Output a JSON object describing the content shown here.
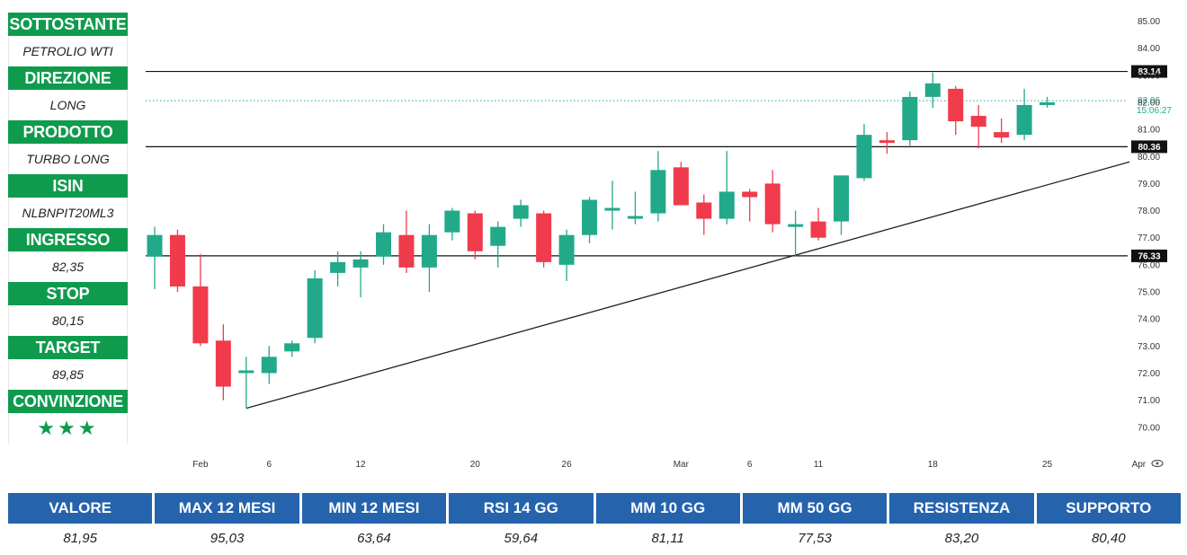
{
  "info_panel": [
    {
      "label": "SOTTOSTANTE",
      "value": "PETROLIO WTI"
    },
    {
      "label": "DIREZIONE",
      "value": "LONG"
    },
    {
      "label": "PRODOTTO",
      "value": "TURBO LONG"
    },
    {
      "label": "ISIN",
      "value": "NLBNPIT20ML3"
    },
    {
      "label": "INGRESSO",
      "value": "82,35"
    },
    {
      "label": "STOP",
      "value": "80,15"
    },
    {
      "label": "TARGET",
      "value": "89,85"
    },
    {
      "label": "CONVINZIONE",
      "value": "★★★"
    }
  ],
  "stats_table": {
    "headers": [
      "VALORE",
      "MAX 12 MESI",
      "MIN 12 MESI",
      "RSI 14 GG",
      "MM 10 GG",
      "MM 50 GG",
      "RESISTENZA",
      "SUPPORTO"
    ],
    "values": [
      "81,95",
      "95,03",
      "63,64",
      "59,64",
      "81,11",
      "77,53",
      "83,20",
      "80,40"
    ]
  },
  "colors": {
    "panel_green": "#0f9b4e",
    "table_blue": "#2563ad",
    "candle_up": "#22a98a",
    "candle_down": "#ef3b4c"
  },
  "chart_data": {
    "type": "candlestick",
    "ylim": [
      69.5,
      85.5
    ],
    "y_ticks": [
      "70.00",
      "71.00",
      "72.00",
      "73.00",
      "74.00",
      "75.00",
      "76.00",
      "77.00",
      "78.00",
      "79.00",
      "80.00",
      "81.00",
      "82.00",
      "83.00",
      "84.00",
      "85.00"
    ],
    "x_tick_labels": [
      {
        "label": "Feb",
        "index": 2
      },
      {
        "label": "6",
        "index": 5
      },
      {
        "label": "12",
        "index": 9
      },
      {
        "label": "20",
        "index": 14
      },
      {
        "label": "26",
        "index": 18
      },
      {
        "label": "Mar",
        "index": 23
      },
      {
        "label": "6",
        "index": 26
      },
      {
        "label": "11",
        "index": 29
      },
      {
        "label": "18",
        "index": 34
      },
      {
        "label": "25",
        "index": 39
      },
      {
        "label": "Apr",
        "index": 43
      }
    ],
    "candles": [
      {
        "o": 76.3,
        "h": 77.4,
        "l": 75.1,
        "c": 77.1
      },
      {
        "o": 77.1,
        "h": 77.3,
        "l": 75.0,
        "c": 75.2
      },
      {
        "o": 75.2,
        "h": 76.4,
        "l": 73.0,
        "c": 73.1
      },
      {
        "o": 73.2,
        "h": 73.8,
        "l": 71.0,
        "c": 71.5
      },
      {
        "o": 72.0,
        "h": 72.6,
        "l": 70.7,
        "c": 72.1
      },
      {
        "o": 72.0,
        "h": 73.0,
        "l": 71.6,
        "c": 72.6
      },
      {
        "o": 72.8,
        "h": 73.2,
        "l": 72.6,
        "c": 73.1
      },
      {
        "o": 73.3,
        "h": 75.8,
        "l": 73.1,
        "c": 75.5
      },
      {
        "o": 75.7,
        "h": 76.5,
        "l": 75.2,
        "c": 76.1
      },
      {
        "o": 75.9,
        "h": 76.5,
        "l": 74.8,
        "c": 76.2
      },
      {
        "o": 76.3,
        "h": 77.5,
        "l": 76.0,
        "c": 77.2
      },
      {
        "o": 77.1,
        "h": 78.0,
        "l": 75.7,
        "c": 75.9
      },
      {
        "o": 75.9,
        "h": 77.5,
        "l": 75.0,
        "c": 77.1
      },
      {
        "o": 77.2,
        "h": 78.1,
        "l": 76.9,
        "c": 78.0
      },
      {
        "o": 77.9,
        "h": 78.0,
        "l": 76.2,
        "c": 76.5
      },
      {
        "o": 76.7,
        "h": 77.6,
        "l": 75.9,
        "c": 77.4
      },
      {
        "o": 77.7,
        "h": 78.4,
        "l": 77.4,
        "c": 78.2
      },
      {
        "o": 77.9,
        "h": 78.0,
        "l": 75.9,
        "c": 76.1
      },
      {
        "o": 76.0,
        "h": 77.3,
        "l": 75.4,
        "c": 77.1
      },
      {
        "o": 77.1,
        "h": 78.5,
        "l": 76.8,
        "c": 78.4
      },
      {
        "o": 78.0,
        "h": 79.1,
        "l": 77.3,
        "c": 78.1
      },
      {
        "o": 77.8,
        "h": 78.7,
        "l": 77.5,
        "c": 77.8
      },
      {
        "o": 77.9,
        "h": 80.2,
        "l": 77.6,
        "c": 79.5
      },
      {
        "o": 79.6,
        "h": 79.8,
        "l": 78.2,
        "c": 78.2
      },
      {
        "o": 78.3,
        "h": 78.6,
        "l": 77.1,
        "c": 77.7
      },
      {
        "o": 77.7,
        "h": 80.2,
        "l": 77.5,
        "c": 78.7
      },
      {
        "o": 78.7,
        "h": 78.8,
        "l": 77.6,
        "c": 78.5
      },
      {
        "o": 79.0,
        "h": 79.5,
        "l": 77.2,
        "c": 77.5
      },
      {
        "o": 77.4,
        "h": 78.0,
        "l": 76.3,
        "c": 77.5
      },
      {
        "o": 77.6,
        "h": 78.1,
        "l": 76.9,
        "c": 77.0
      },
      {
        "o": 77.6,
        "h": 79.3,
        "l": 77.1,
        "c": 79.3
      },
      {
        "o": 79.2,
        "h": 81.2,
        "l": 79.1,
        "c": 80.8
      },
      {
        "o": 80.6,
        "h": 80.9,
        "l": 80.1,
        "c": 80.5
      },
      {
        "o": 80.6,
        "h": 82.4,
        "l": 80.4,
        "c": 82.2
      },
      {
        "o": 82.2,
        "h": 83.1,
        "l": 81.8,
        "c": 82.7
      },
      {
        "o": 82.5,
        "h": 82.6,
        "l": 80.8,
        "c": 81.3
      },
      {
        "o": 81.5,
        "h": 81.9,
        "l": 80.3,
        "c": 81.1
      },
      {
        "o": 80.9,
        "h": 81.4,
        "l": 80.5,
        "c": 80.7
      },
      {
        "o": 80.8,
        "h": 82.5,
        "l": 80.6,
        "c": 81.9
      },
      {
        "o": 81.9,
        "h": 82.2,
        "l": 81.8,
        "c": 82.0
      }
    ],
    "horizontal_levels": [
      {
        "value": 83.14,
        "label": "83.14"
      },
      {
        "value": 80.36,
        "label": "80.36"
      },
      {
        "value": 76.33,
        "label": "76.33"
      }
    ],
    "current_price": {
      "value": 82.06,
      "label": "82.06",
      "timer": "15:06:27"
    },
    "trendline": {
      "start": {
        "index": 4,
        "value": 70.7
      },
      "end": {
        "index": 42.6,
        "value": 79.8
      }
    }
  }
}
